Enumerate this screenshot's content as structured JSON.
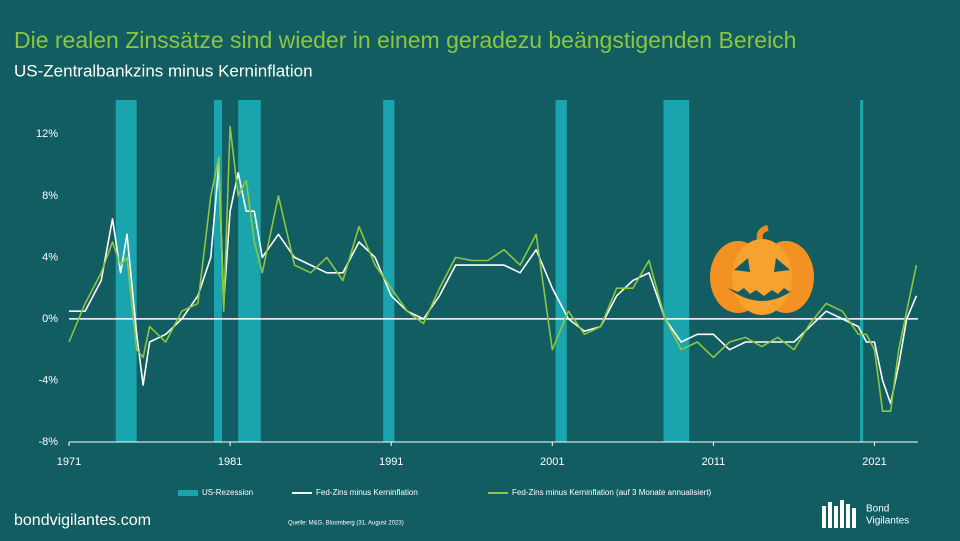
{
  "chart_data": {
    "type": "line",
    "title": "Die realen Zinssätze sind wieder in einem geradezu beängstigenden Bereich",
    "subtitle": "US-Zentralbankzins minus Kerninflation",
    "source": "Quelle: M&G, Bloomberg (31. August 2023)",
    "website": "bondvigilantes.com",
    "brand": [
      "Bond",
      "Vigilantes"
    ],
    "x": [
      1971,
      1972,
      1973,
      1973.7,
      1974.2,
      1974.6,
      1975.2,
      1975.6,
      1976,
      1977,
      1978,
      1979,
      1979.8,
      1980.3,
      1980.6,
      1981,
      1981.5,
      1982,
      1982.5,
      1983,
      1984,
      1985,
      1986,
      1987,
      1988,
      1989,
      1990,
      1991,
      1992,
      1993,
      1994,
      1995,
      1996,
      1997,
      1998,
      1999,
      2000,
      2001,
      2002,
      2003,
      2004,
      2005,
      2006,
      2007,
      2008,
      2009,
      2010,
      2011,
      2012,
      2013,
      2014,
      2015,
      2016,
      2017,
      2018,
      2019,
      2020,
      2020.5,
      2021,
      2021.5,
      2022,
      2022.5,
      2023,
      2023.6
    ],
    "series": [
      {
        "name": "Fed-Zins minus Kerninflation",
        "color": "#ffffff",
        "values": [
          0.5,
          0.5,
          2.5,
          6.5,
          3,
          5.5,
          -1,
          -4.3,
          -1.5,
          -1,
          0,
          1.5,
          4,
          10,
          1,
          7,
          9.5,
          7,
          7,
          4,
          5.5,
          4,
          3.5,
          3,
          3,
          5,
          4,
          1.5,
          0.5,
          0,
          1.5,
          3.5,
          3.5,
          3.5,
          3.5,
          3,
          4.5,
          2,
          0,
          -0.8,
          -0.5,
          1.5,
          2.5,
          3,
          0,
          -1.5,
          -1,
          -1,
          -2,
          -1.5,
          -1.5,
          -1.5,
          -1.5,
          -0.5,
          0.5,
          0,
          -0.5,
          -1.5,
          -1.5,
          -4,
          -5.5,
          -3,
          0,
          1.5
        ]
      },
      {
        "name": "Fed-Zins minus Kerninflation (auf 3 Monate annualisiert)",
        "color": "#8cc63f",
        "values": [
          -1.5,
          1,
          3,
          5,
          3.5,
          4,
          -2,
          -2.5,
          -0.5,
          -1.5,
          0.5,
          1,
          8,
          10.5,
          0.5,
          12.5,
          8,
          9,
          5,
          3,
          8,
          3.5,
          3,
          4,
          2.5,
          6,
          3.5,
          2,
          0.5,
          -0.3,
          2,
          4,
          3.8,
          3.8,
          4.5,
          3.5,
          5.5,
          -2,
          0.5,
          -1,
          -0.5,
          2,
          2,
          3.8,
          0,
          -2,
          -1.5,
          -2.5,
          -1.5,
          -1.2,
          -1.8,
          -1.2,
          -2,
          -0.3,
          1,
          0.5,
          -1,
          -1,
          -2,
          -6,
          -6,
          -2,
          0.5,
          3.5
        ]
      }
    ],
    "recession_label": "US-Rezession",
    "recession_color": "#1aa4ad",
    "recessions": [
      [
        1973.9,
        1975.2
      ],
      [
        1980.0,
        1980.5
      ],
      [
        1981.5,
        1982.9
      ],
      [
        1990.5,
        1991.2
      ],
      [
        2001.2,
        2001.9
      ],
      [
        2007.9,
        2009.5
      ],
      [
        2020.1,
        2020.3
      ]
    ],
    "xlim": [
      1971,
      2023.7
    ],
    "xticks": [
      1971,
      1981,
      1991,
      2001,
      2011,
      2021
    ],
    "ylim": [
      -8,
      12.8
    ],
    "yticks": [
      {
        "value": -8,
        "label": "-8%"
      },
      {
        "value": -4,
        "label": "-4%"
      },
      {
        "value": 0,
        "label": "0%"
      },
      {
        "value": 4,
        "label": "4%"
      },
      {
        "value": 8,
        "label": "8%"
      },
      {
        "value": 12,
        "label": "12%"
      }
    ]
  }
}
